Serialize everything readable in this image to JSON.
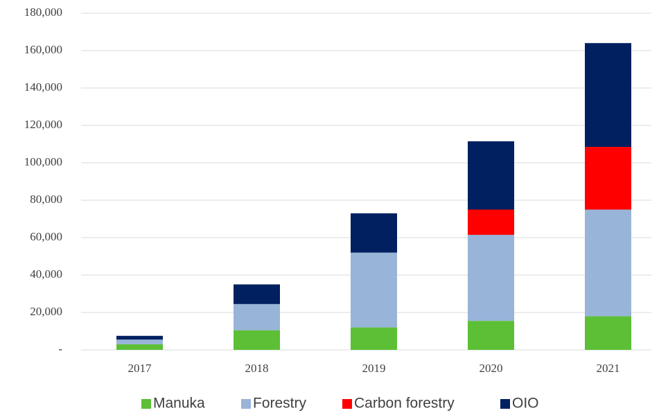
{
  "chart_data": {
    "type": "stacked_bar",
    "categories": [
      "2017",
      "2018",
      "2019",
      "2020",
      "2021"
    ],
    "series": [
      {
        "name": "Manuka",
        "color": "#5cbf35",
        "values": [
          3000,
          10500,
          12000,
          15500,
          18000
        ]
      },
      {
        "name": "Forestry",
        "color": "#98b4d8",
        "values": [
          2500,
          14000,
          40000,
          46000,
          57000
        ]
      },
      {
        "name": "Carbon forestry",
        "color": "#ff0000",
        "values": [
          0,
          0,
          0,
          13500,
          33500
        ]
      },
      {
        "name": "OIO",
        "color": "#002060",
        "values": [
          2000,
          10500,
          21000,
          36500,
          55500
        ]
      }
    ],
    "ylim": [
      0,
      180000
    ],
    "yticks": [
      {
        "value": 0,
        "label": "-"
      },
      {
        "value": 20000,
        "label": "20,000"
      },
      {
        "value": 40000,
        "label": "40,000"
      },
      {
        "value": 60000,
        "label": "60,000"
      },
      {
        "value": 80000,
        "label": "80,000"
      },
      {
        "value": 100000,
        "label": "100,000"
      },
      {
        "value": 120000,
        "label": "120,000"
      },
      {
        "value": 140000,
        "label": "140,000"
      },
      {
        "value": 160000,
        "label": "160,000"
      },
      {
        "value": 180000,
        "label": "180,000"
      }
    ],
    "grid": true,
    "legend": "bottom"
  }
}
